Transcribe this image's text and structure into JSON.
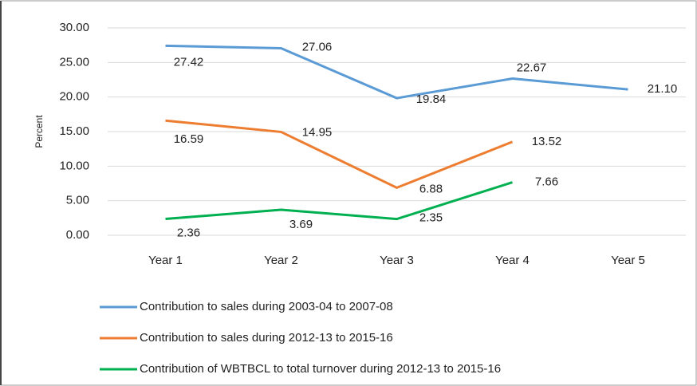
{
  "chart_data": {
    "type": "line",
    "y_label": "Percent",
    "categories": [
      "Year 1",
      "Year 2",
      "Year 3",
      "Year 4",
      "Year 5"
    ],
    "series": [
      {
        "name": "Contribution to sales during 2003-04 to 2007-08",
        "color": "#5b9bd5",
        "values": [
          27.42,
          27.06,
          19.84,
          22.67,
          21.1
        ],
        "value_labels": [
          "27.42",
          "27.06",
          "19.84",
          "22.67",
          "21.10"
        ]
      },
      {
        "name": "Contribution to sales during 2012-13 to 2015-16",
        "color": "#ed7d31",
        "values": [
          16.59,
          14.95,
          6.88,
          13.52,
          null
        ],
        "value_labels": [
          "16.59",
          "14.95",
          "6.88",
          "13.52",
          null
        ]
      },
      {
        "name": "Contribution of WBTBCL to total turnover during 2012-13 to 2015-16",
        "color": "#00b050",
        "values": [
          2.36,
          3.69,
          2.35,
          7.66,
          null
        ],
        "value_labels": [
          "2.36",
          "3.69",
          "2.35",
          "7.66",
          null
        ]
      }
    ],
    "ylim": [
      0,
      30
    ],
    "yticks": [
      {
        "value": 0,
        "label": "0.00"
      },
      {
        "value": 5,
        "label": "5.00"
      },
      {
        "value": 10,
        "label": "10.00"
      },
      {
        "value": 15,
        "label": "15.00"
      },
      {
        "value": 20,
        "label": "20.00"
      },
      {
        "value": 25,
        "label": "25.00"
      },
      {
        "value": 30,
        "label": "30.00"
      }
    ],
    "grid": true
  }
}
